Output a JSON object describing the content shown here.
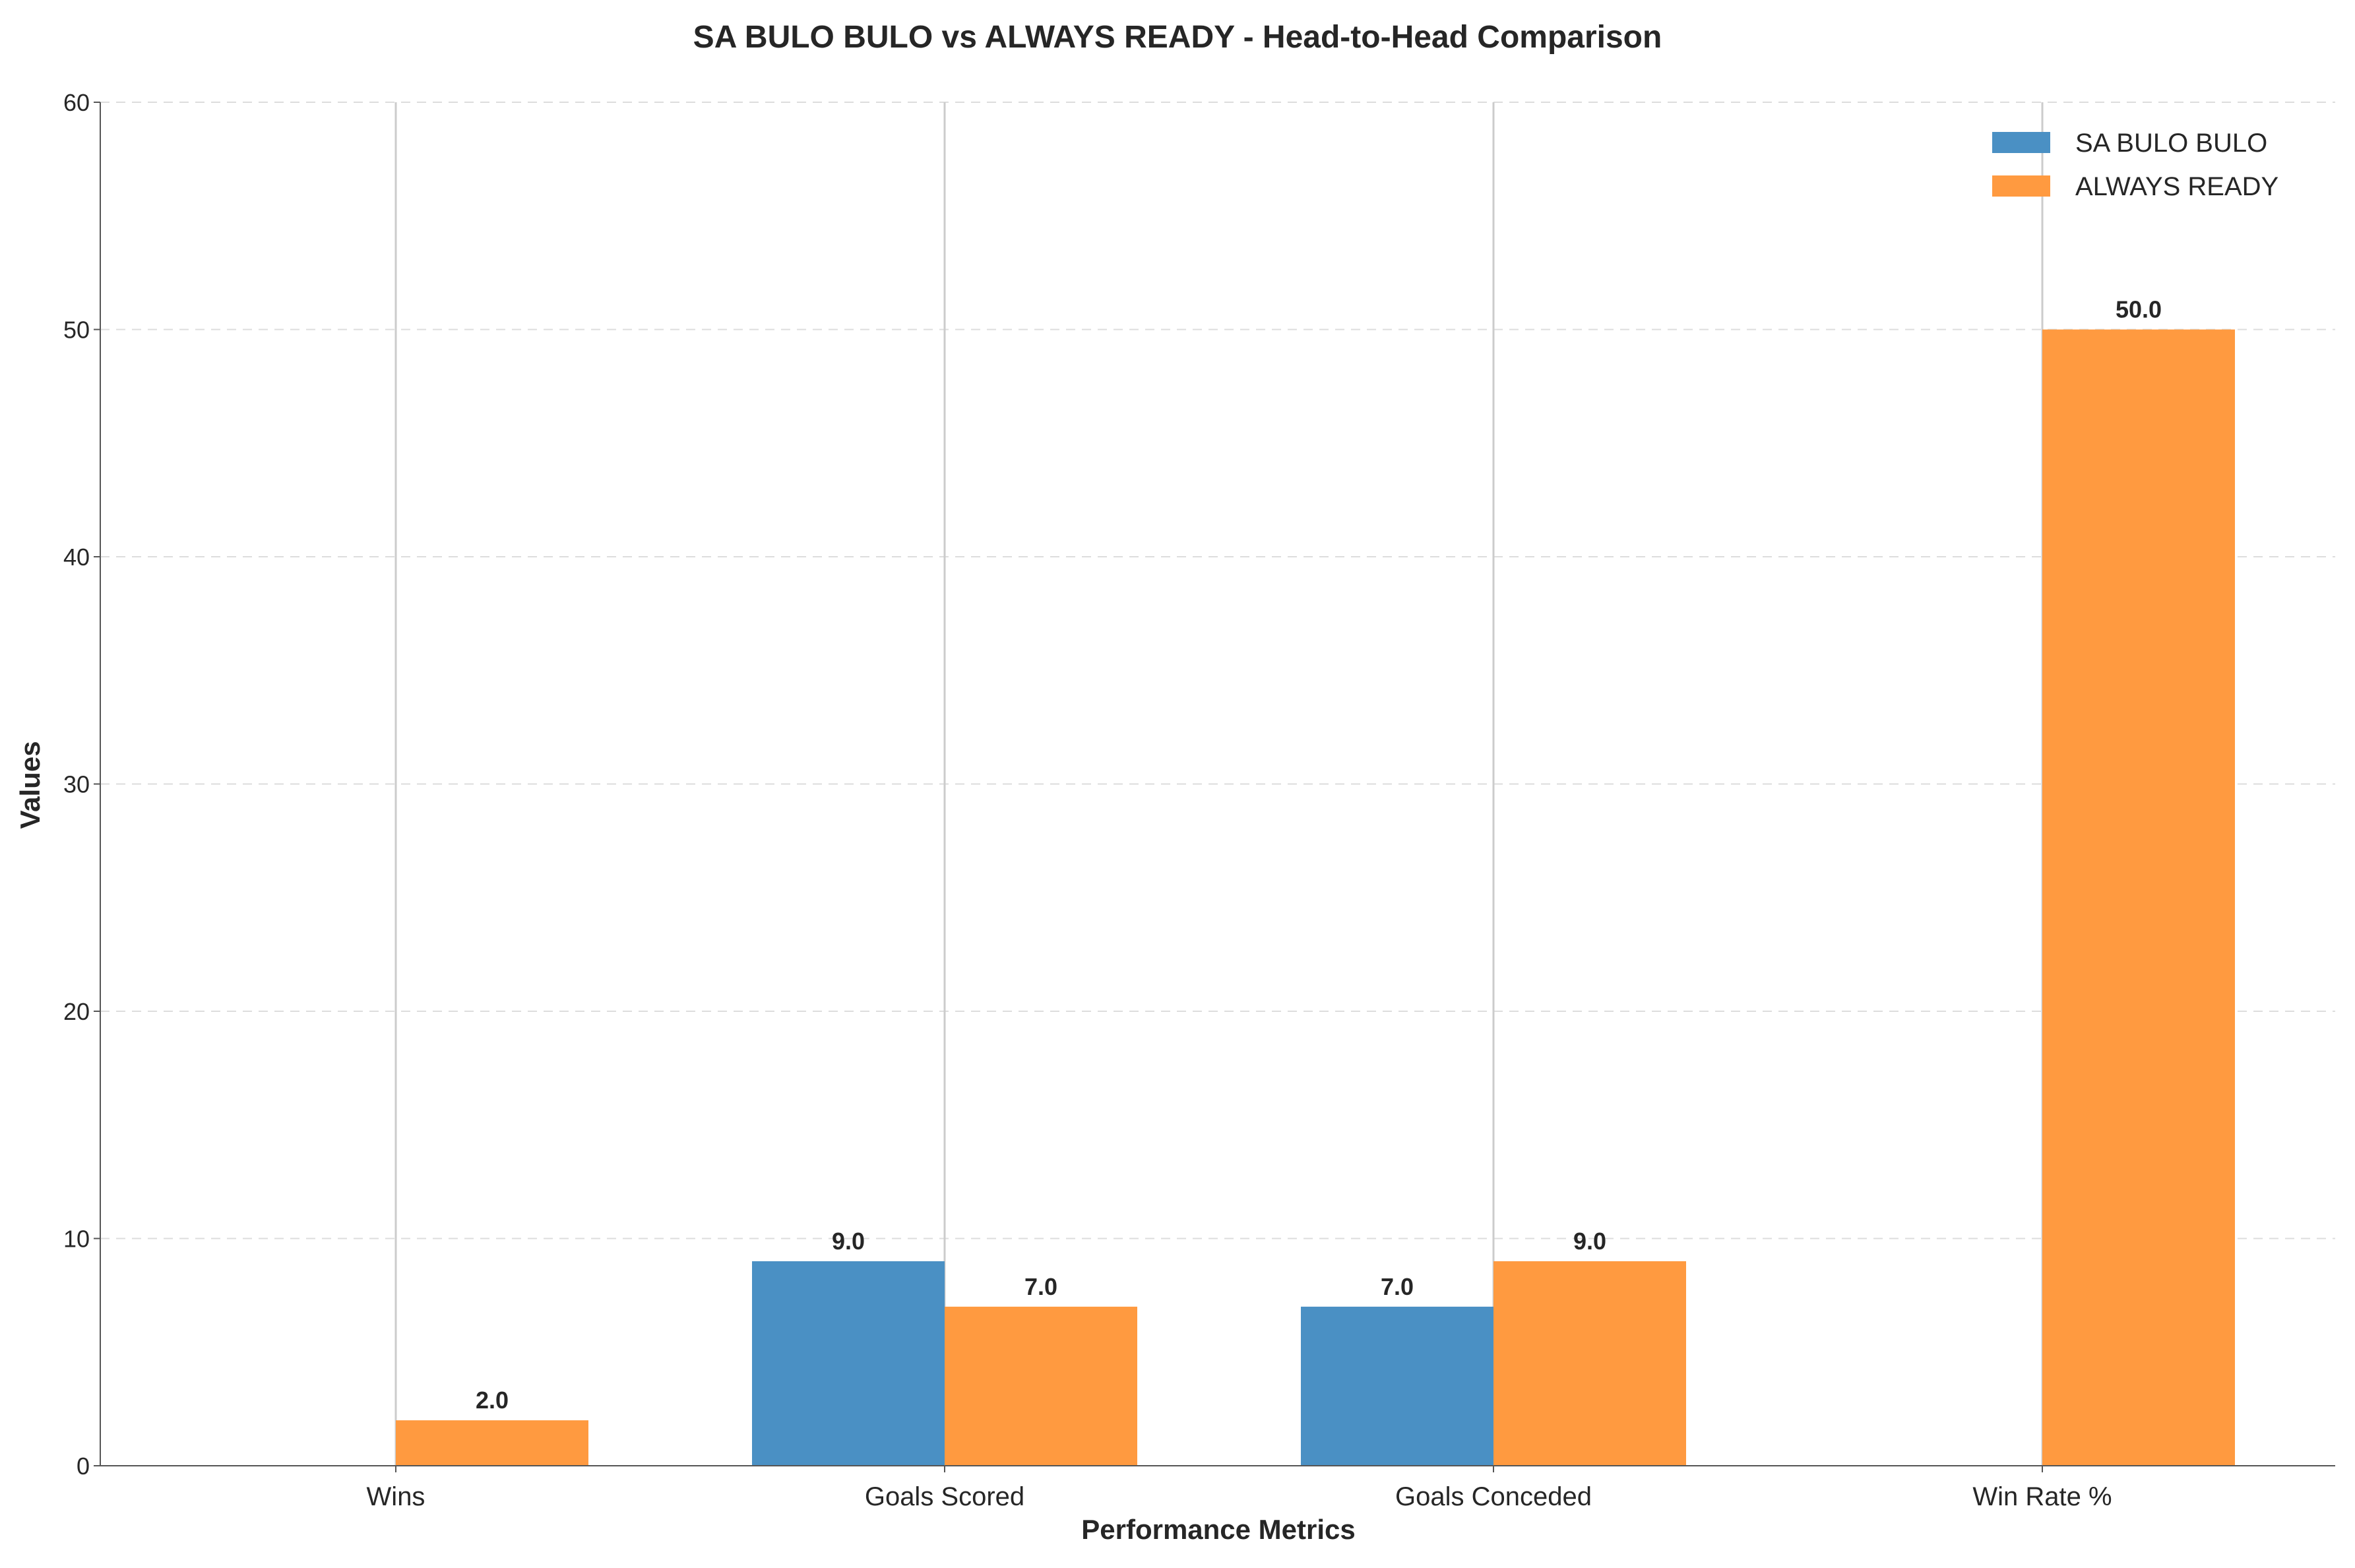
{
  "chart_data": {
    "type": "bar",
    "title": "SA BULO BULO vs ALWAYS READY - Head-to-Head Comparison",
    "xlabel": "Performance Metrics",
    "ylabel": "Values",
    "categories": [
      "Wins",
      "Goals Scored",
      "Goals Conceded",
      "Win Rate %"
    ],
    "series": [
      {
        "name": "SA BULO BULO",
        "values": [
          0,
          9,
          7,
          0
        ],
        "color": "#4A90C4"
      },
      {
        "name": "ALWAYS READY",
        "values": [
          2,
          7,
          9,
          50
        ],
        "color": "#FF9A40"
      }
    ],
    "data_labels": [
      [
        null,
        "9.0",
        "7.0",
        null
      ],
      [
        "2.0",
        "7.0",
        "9.0",
        "50.0"
      ]
    ],
    "ylim": [
      0,
      60
    ],
    "yticks": [
      "0",
      "10",
      "20",
      "30",
      "40",
      "50",
      "60"
    ],
    "grid": true,
    "legend_position": "top-right"
  }
}
